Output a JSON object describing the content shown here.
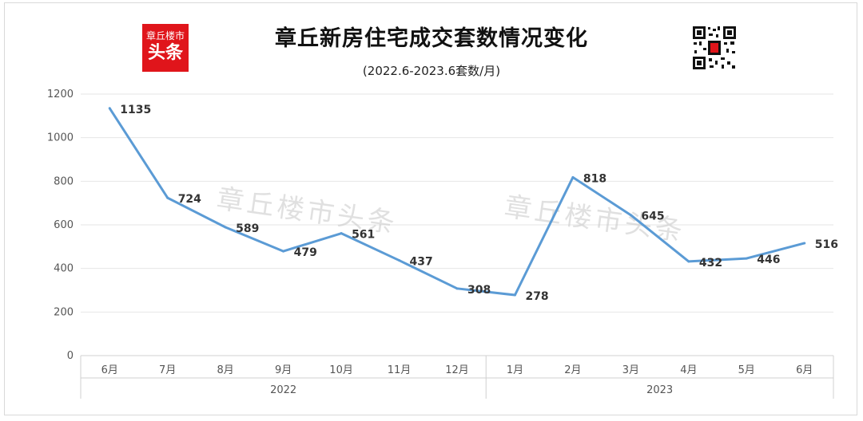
{
  "header": {
    "title": "章丘新房住宅成交套数情况变化",
    "subtitle": "(2022.6-2023.6套数/月)",
    "logo_line1": "章丘楼市",
    "logo_line2": "头条"
  },
  "watermark": "章丘楼市头条",
  "colors": {
    "line": "#5b9bd5",
    "logo_bg": "#e0151b",
    "grid": "#e6e6e6"
  },
  "chart_data": {
    "type": "line",
    "categories": [
      "6月",
      "7月",
      "8月",
      "9月",
      "10月",
      "11月",
      "12月",
      "1月",
      "2月",
      "3月",
      "4月",
      "5月",
      "6月"
    ],
    "groups": [
      {
        "label": "2022",
        "start": 0,
        "end": 6
      },
      {
        "label": "2023",
        "start": 7,
        "end": 12
      }
    ],
    "series": [
      {
        "values": [
          1135,
          724,
          589,
          479,
          561,
          437,
          308,
          278,
          818,
          645,
          432,
          446,
          516
        ]
      }
    ],
    "title": "章丘新房住宅成交套数情况变化",
    "subtitle": "(2022.6-2023.6套数/月)",
    "xlabel": "",
    "ylabel": "",
    "ylim": [
      0,
      1200
    ],
    "yticks": [
      0,
      200,
      400,
      600,
      800,
      1000,
      1200
    ],
    "grid": true,
    "legend": "none"
  }
}
